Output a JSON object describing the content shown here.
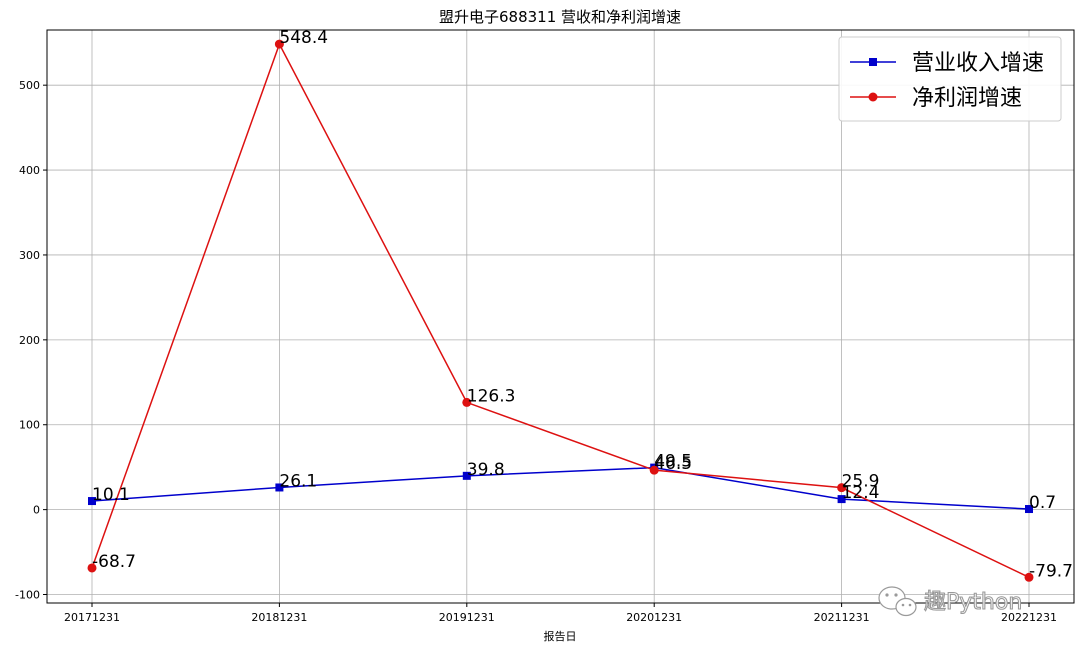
{
  "chart_data": {
    "type": "line",
    "title": "盟升电子688311 营收和净利润增速",
    "xlabel": "报告日",
    "ylabel": "",
    "categories": [
      "20171231",
      "20181231",
      "20191231",
      "20201231",
      "20211231",
      "20221231"
    ],
    "series": [
      {
        "name": "营业收入增速",
        "values": [
          10.1,
          26.1,
          39.8,
          49.5,
          12.4,
          0.7
        ],
        "color": "#0000cc",
        "marker": "square"
      },
      {
        "name": "净利润增速",
        "values": [
          -68.7,
          548.4,
          126.3,
          46.5,
          25.9,
          -79.7
        ],
        "color": "#dd1111",
        "marker": "circle"
      }
    ],
    "ylim": [
      -110,
      565
    ],
    "yticks": [
      -100,
      0,
      100,
      200,
      300,
      400,
      500
    ],
    "grid": true,
    "legend": "top-right"
  },
  "watermark": {
    "text": "趣Python",
    "icon": "wechat-icon"
  }
}
